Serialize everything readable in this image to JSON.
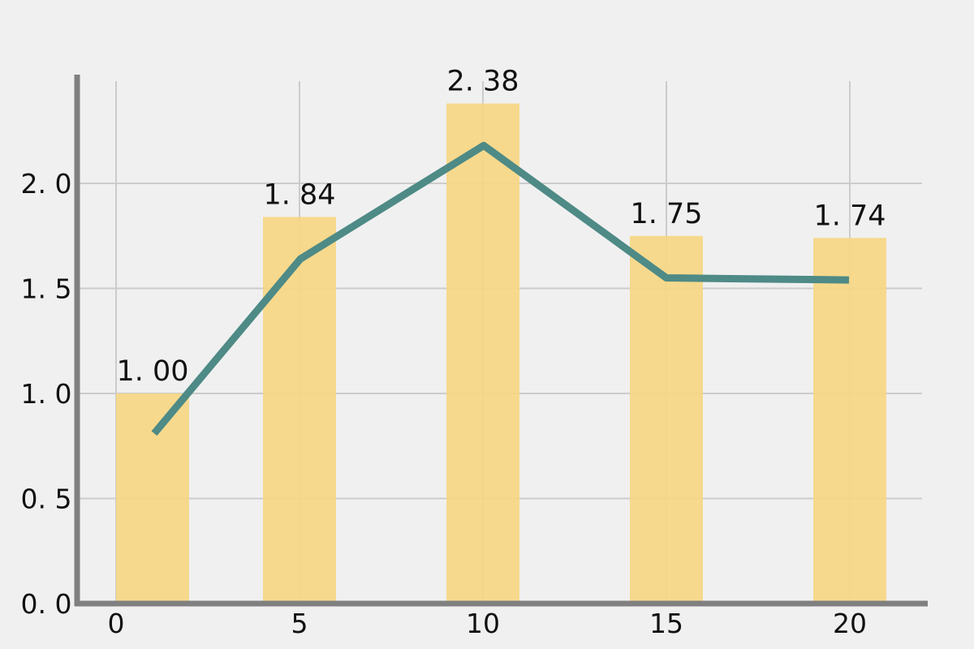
{
  "chart_data": {
    "type": "bar",
    "categories": [
      "0",
      "5",
      "10",
      "15",
      "20"
    ],
    "x": [
      0,
      5,
      10,
      15,
      20
    ],
    "series": [
      {
        "name": "bars",
        "type": "bar",
        "values": [
          1.0,
          1.84,
          2.38,
          1.75,
          1.74
        ],
        "labels": [
          "1. 00",
          "1. 84",
          "2. 38",
          "1. 75",
          "1. 74"
        ]
      },
      {
        "name": "line",
        "type": "line",
        "values": [
          0.81,
          1.64,
          2.18,
          1.55,
          1.54
        ]
      }
    ],
    "title": "",
    "xlabel": "",
    "ylabel": "",
    "ylim": [
      0,
      2.5
    ],
    "xticks": [
      0,
      5,
      10,
      15,
      20
    ],
    "xtick_labels": [
      "0",
      "5",
      "10",
      "15",
      "20"
    ],
    "yticks": [
      0,
      0.5,
      1.0,
      1.5,
      2.0
    ],
    "ytick_labels": [
      "0. 0",
      "0. 5",
      "1. 0",
      "1. 5",
      "2. 0"
    ],
    "grid": true,
    "legend": "none",
    "colors": {
      "background": "#f0f0f0",
      "bar": "#f6d784",
      "line": "#4e8a86",
      "grid": "#cccccc",
      "axis": "#808080",
      "text": "#111111"
    }
  }
}
